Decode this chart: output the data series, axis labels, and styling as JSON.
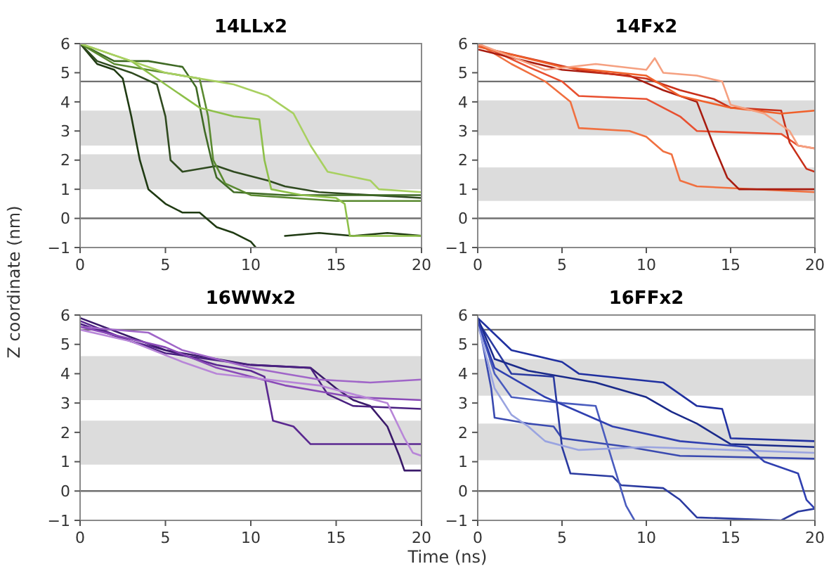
{
  "chart_data": [
    {
      "type": "line",
      "title": "14LLx2",
      "ylabel": "Z coordinate (nm)",
      "xlim": [
        0,
        20
      ],
      "xticks": [
        0,
        5,
        10,
        15,
        20
      ],
      "ylim": [
        -1,
        6
      ],
      "yticks": [
        -1,
        0,
        1,
        2,
        3,
        4,
        5,
        6
      ],
      "bands": [
        {
          "axis": "y",
          "from": 2.5,
          "to": 3.7,
          "color": "#dcdcdc"
        },
        {
          "axis": "y",
          "from": 1.0,
          "to": 2.2,
          "color": "#dcdcdc"
        }
      ],
      "ref_lines": [
        {
          "axis": "y",
          "value": 4.7,
          "color": "#707070"
        },
        {
          "axis": "y",
          "value": 0,
          "color": "#707070"
        }
      ],
      "series": [
        {
          "color": "#1f3a12",
          "x": [
            0,
            1,
            2,
            2.5,
            3,
            3.5,
            4,
            5,
            6,
            7,
            8,
            9,
            10,
            10.3,
            11,
            12,
            14,
            16,
            18,
            20
          ],
          "values": [
            6,
            5.3,
            5.1,
            4.8,
            3.5,
            2,
            1,
            0.5,
            0.2,
            0.2,
            -0.3,
            -0.5,
            -0.8,
            -1,
            null,
            -0.6,
            -0.5,
            -0.6,
            -0.5,
            -0.6
          ]
        },
        {
          "color": "#2f4a1f",
          "x": [
            0,
            1,
            3,
            4.5,
            5,
            5.3,
            6,
            8,
            9,
            11,
            12,
            14,
            20
          ],
          "values": [
            6,
            5.4,
            5.0,
            4.6,
            3.5,
            2,
            1.6,
            1.8,
            1.6,
            1.3,
            1.1,
            0.9,
            0.7
          ]
        },
        {
          "color": "#3f6a25",
          "x": [
            0,
            2,
            4,
            6,
            6.8,
            7.3,
            7.7,
            8,
            9,
            12,
            20
          ],
          "values": [
            6,
            5.4,
            5.4,
            5.2,
            4.5,
            3,
            2,
            1.4,
            0.9,
            0.8,
            0.8
          ]
        },
        {
          "color": "#5a8a30",
          "x": [
            0,
            2,
            5,
            7,
            7.5,
            7.8,
            8.5,
            10,
            15,
            20
          ],
          "values": [
            6,
            5.3,
            5.0,
            4.8,
            3.5,
            2,
            1.2,
            0.8,
            0.6,
            0.6
          ]
        },
        {
          "color": "#8ec04a",
          "x": [
            0,
            3,
            5,
            7,
            9,
            10.5,
            10.8,
            11.2,
            13,
            15,
            15.5,
            15.8,
            20
          ],
          "values": [
            6,
            5.4,
            4.6,
            3.8,
            3.5,
            3.4,
            2,
            1.0,
            0.8,
            0.7,
            0.5,
            -0.6,
            -0.6
          ]
        },
        {
          "color": "#a8d060",
          "x": [
            0,
            5,
            8,
            9,
            11,
            12.5,
            13.5,
            14.5,
            17,
            17.5,
            20
          ],
          "values": [
            6,
            5.0,
            4.7,
            4.6,
            4.2,
            3.6,
            2.5,
            1.6,
            1.3,
            1.0,
            0.9
          ]
        }
      ]
    },
    {
      "type": "line",
      "title": "14Fx2",
      "xlim": [
        0,
        20
      ],
      "xticks": [
        0,
        5,
        10,
        15,
        20
      ],
      "ylim": [
        -1,
        6
      ],
      "yticks": [
        -1,
        0,
        1,
        2,
        3,
        4,
        5,
        6
      ],
      "bands": [
        {
          "axis": "y",
          "from": 2.85,
          "to": 4.05,
          "color": "#dcdcdc"
        },
        {
          "axis": "y",
          "from": 0.6,
          "to": 1.75,
          "color": "#dcdcdc"
        }
      ],
      "ref_lines": [
        {
          "axis": "y",
          "value": 4.7,
          "color": "#707070"
        },
        {
          "axis": "y",
          "value": 0,
          "color": "#707070"
        }
      ],
      "series": [
        {
          "color": "#f07040",
          "x": [
            0,
            2,
            4,
            5.5,
            6,
            9,
            10,
            11,
            11.5,
            12,
            13,
            20
          ],
          "values": [
            6,
            5.3,
            4.7,
            4.0,
            3.1,
            3.0,
            2.8,
            2.3,
            2.2,
            1.3,
            1.1,
            0.9
          ]
        },
        {
          "color": "#e85030",
          "x": [
            0,
            3,
            5,
            6,
            10,
            11,
            12,
            13,
            18,
            19,
            20
          ],
          "values": [
            6,
            5.2,
            4.7,
            4.2,
            4.1,
            3.8,
            3.5,
            3.0,
            2.9,
            2.5,
            2.4
          ]
        },
        {
          "color": "#a81c10",
          "x": [
            0,
            5,
            9,
            11,
            13,
            14,
            14.8,
            15.5,
            20
          ],
          "values": [
            5.8,
            5.1,
            4.9,
            4.4,
            4.0,
            2.5,
            1.4,
            1.0,
            1.0
          ]
        },
        {
          "color": "#c8301a",
          "x": [
            0,
            6,
            10,
            12,
            14,
            15,
            18,
            18.5,
            19.5,
            20
          ],
          "values": [
            5.9,
            5.1,
            4.8,
            4.4,
            4.1,
            3.8,
            3.7,
            2.6,
            1.7,
            1.6
          ]
        },
        {
          "color": "#f0602a",
          "x": [
            0,
            5,
            10,
            12,
            15,
            18,
            20
          ],
          "values": [
            5.9,
            5.2,
            4.9,
            4.2,
            3.8,
            3.6,
            3.7
          ]
        },
        {
          "color": "#f5a080",
          "x": [
            0,
            4,
            7,
            10,
            10.5,
            11,
            13,
            14.5,
            15,
            17,
            18.5,
            19,
            20
          ],
          "values": [
            6,
            5.1,
            5.3,
            5.1,
            5.5,
            5.0,
            4.9,
            4.7,
            3.9,
            3.6,
            3.0,
            2.5,
            2.4
          ]
        }
      ]
    },
    {
      "type": "line",
      "title": "16WWx2",
      "xlabel": "Time (ns)",
      "xlim": [
        0,
        20
      ],
      "xticks": [
        0,
        5,
        10,
        15,
        20
      ],
      "ylim": [
        -1,
        6
      ],
      "yticks": [
        -1,
        0,
        1,
        2,
        3,
        4,
        5,
        6
      ],
      "bands": [
        {
          "axis": "y",
          "from": 3.1,
          "to": 4.6,
          "color": "#dcdcdc"
        },
        {
          "axis": "y",
          "from": 0.9,
          "to": 2.4,
          "color": "#dcdcdc"
        }
      ],
      "ref_lines": [
        {
          "axis": "y",
          "value": 5.5,
          "color": "#707070"
        },
        {
          "axis": "y",
          "value": 0,
          "color": "#707070"
        }
      ],
      "series": [
        {
          "color": "#5a2890",
          "x": [
            0,
            3,
            5,
            8,
            10,
            10.8,
            11.3,
            12.5,
            13.5,
            20
          ],
          "values": [
            5.8,
            5.1,
            4.8,
            4.3,
            4.1,
            3.9,
            2.4,
            2.2,
            1.6,
            1.6
          ]
        },
        {
          "color": "#3a1a6a",
          "x": [
            0,
            5,
            10,
            13.5,
            15,
            16,
            17,
            18,
            18.7,
            19,
            20
          ],
          "values": [
            5.9,
            4.8,
            4.3,
            4.2,
            3.5,
            3.1,
            2.9,
            2.2,
            1.2,
            0.7,
            0.7
          ]
        },
        {
          "color": "#4a2080",
          "x": [
            0,
            5,
            10,
            13.5,
            14.5,
            16,
            20
          ],
          "values": [
            5.7,
            4.7,
            4.3,
            4.2,
            3.3,
            2.9,
            2.8
          ]
        },
        {
          "color": "#a066c8",
          "x": [
            0,
            4,
            6,
            10,
            12,
            14,
            17,
            20
          ],
          "values": [
            5.6,
            5.4,
            4.8,
            4.2,
            4.0,
            3.8,
            3.7,
            3.8
          ]
        },
        {
          "color": "#8a4ab8",
          "x": [
            0,
            5,
            8,
            12,
            14,
            16,
            20
          ],
          "values": [
            5.6,
            4.9,
            4.2,
            3.6,
            3.4,
            3.2,
            3.1
          ]
        },
        {
          "color": "#b886d8",
          "x": [
            0,
            3,
            6,
            8,
            11,
            14,
            16,
            18,
            19,
            19.5,
            20
          ],
          "values": [
            5.5,
            5.1,
            4.4,
            4.0,
            3.8,
            3.6,
            3.3,
            3.0,
            1.8,
            1.3,
            1.2
          ]
        }
      ]
    },
    {
      "type": "line",
      "title": "16FFx2",
      "xlim": [
        0,
        20
      ],
      "xticks": [
        0,
        5,
        10,
        15,
        20
      ],
      "ylim": [
        -1,
        6
      ],
      "yticks": [
        -1,
        0,
        1,
        2,
        3,
        4,
        5,
        6
      ],
      "bands": [
        {
          "axis": "y",
          "from": 3.25,
          "to": 4.5,
          "color": "#dcdcdc"
        },
        {
          "axis": "y",
          "from": 1.05,
          "to": 2.3,
          "color": "#dcdcdc"
        }
      ],
      "ref_lines": [
        {
          "axis": "y",
          "value": 5.5,
          "color": "#707070"
        },
        {
          "axis": "y",
          "value": 0,
          "color": "#707070"
        }
      ],
      "series": [
        {
          "color": "#3a4ab0",
          "x": [
            0,
            0.8,
            1,
            3,
            4.5,
            5,
            9,
            12,
            20
          ],
          "values": [
            5.9,
            3.5,
            2.5,
            2.3,
            2.2,
            1.8,
            1.5,
            1.2,
            1.1
          ]
        },
        {
          "color": "#2a3aa0",
          "x": [
            0,
            2,
            4.5,
            5,
            5.5,
            8,
            8.5,
            11,
            12,
            13,
            18,
            19,
            20
          ],
          "values": [
            5.8,
            4.0,
            3.9,
            1.5,
            0.6,
            0.5,
            0.2,
            0.1,
            -0.3,
            -0.9,
            -1,
            -0.7,
            -0.6
          ]
        },
        {
          "color": "#4a5cbe",
          "x": [
            0,
            1,
            2,
            5,
            7,
            8,
            8.8,
            9.3
          ],
          "values": [
            5.8,
            4,
            3.2,
            3.0,
            2.9,
            1.0,
            -0.5,
            -1
          ]
        },
        {
          "color": "#9aa4e0",
          "x": [
            0,
            1,
            2,
            3,
            4,
            6,
            10,
            15,
            20
          ],
          "values": [
            5.7,
            3.5,
            2.6,
            2.2,
            1.7,
            1.4,
            1.5,
            1.4,
            1.3
          ]
        },
        {
          "color": "#2030a0",
          "x": [
            0,
            2,
            5,
            6,
            11,
            12,
            13,
            14.5,
            15,
            20
          ],
          "values": [
            5.9,
            4.8,
            4.4,
            4.0,
            3.7,
            3.3,
            2.9,
            2.8,
            1.8,
            1.7
          ]
        },
        {
          "color": "#1a2a8a",
          "x": [
            0,
            1,
            3,
            7,
            10,
            11.5,
            13,
            15,
            20
          ],
          "values": [
            5.9,
            4.5,
            4.1,
            3.7,
            3.2,
            2.7,
            2.3,
            1.6,
            1.5
          ]
        },
        {
          "color": "#3040b0",
          "x": [
            0,
            1,
            4,
            8,
            12,
            16,
            17,
            19,
            19.5,
            20
          ],
          "values": [
            5.8,
            4.2,
            3.2,
            2.2,
            1.7,
            1.5,
            1.0,
            0.6,
            -0.3,
            -0.6
          ]
        }
      ]
    }
  ]
}
